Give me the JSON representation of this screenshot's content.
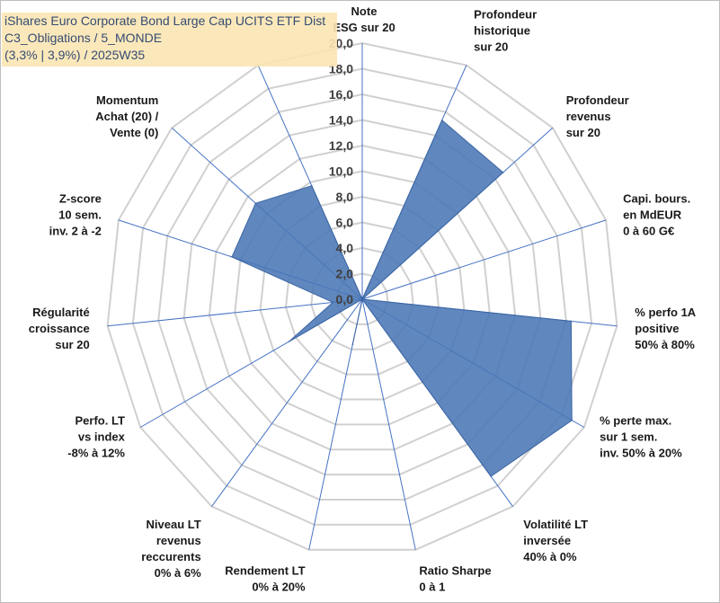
{
  "title": {
    "line1": "iShares Euro Corporate Bond Large Cap UCITS ETF Dist",
    "line2": "C3_Obligations / 5_MONDE",
    "line3": "(3,3% | 3,9%) / 2025W35"
  },
  "colors": {
    "fill": "#4a76b5",
    "stroke": "#3b65a3",
    "grid": "#d0d0d0",
    "spoke": "#4472c4",
    "title_bg": "#fbe6b3",
    "title_text": "#1f3864"
  },
  "chart_data": {
    "type": "radar",
    "rmin": 0,
    "rmax": 20,
    "rings": [
      0,
      2,
      4,
      6,
      8,
      10,
      12,
      14,
      16,
      18,
      20
    ],
    "tick_labels": [
      "0,0",
      "2,0",
      "4,0",
      "6,0",
      "8,0",
      "10,0",
      "12,0",
      "14,0",
      "16,0",
      "18,0",
      "20,0"
    ],
    "axes": [
      {
        "label": [
          "Note",
          "ESG sur 20"
        ],
        "value": 0
      },
      {
        "label": [
          "Profondeur",
          "historique",
          "sur 20"
        ],
        "value": 15.3
      },
      {
        "label": [
          "Profondeur",
          "revenus",
          "sur 20"
        ],
        "value": 14.8
      },
      {
        "label": [
          "Capi. bours.",
          "en MdEUR",
          "0 à 60 G€"
        ],
        "value": 0
      },
      {
        "label": [
          "% perfo 1A",
          "positive",
          "50% à 80%"
        ],
        "value": 16.4
      },
      {
        "label": [
          "% perte max.",
          "sur 1 sem.",
          "inv. 50% à 20%"
        ],
        "value": 18.9
      },
      {
        "label": [
          "Volatilité LT",
          "inversée",
          "40% à 0%"
        ],
        "value": 17.1
      },
      {
        "label": [
          "Ratio Sharpe",
          "0 à 1"
        ],
        "value": 0
      },
      {
        "label": [
          "Rendement LT",
          "0% à 20%"
        ],
        "value": 3.6
      },
      {
        "label": [
          "Niveau LT",
          "revenus",
          "reccurents",
          "0% à 6%"
        ],
        "value": 0
      },
      {
        "label": [
          "Perfo. LT",
          "vs index",
          "-8% à 12%"
        ],
        "value": 6.6
      },
      {
        "label": [
          "Régularité",
          "croissance",
          "sur 20"
        ],
        "value": 2.3
      },
      {
        "label": [
          "Z-score",
          "10 sem.",
          "inv. 2 à -2"
        ],
        "value": 10.7
      },
      {
        "label": [
          "Momentum",
          "Achat (20) /",
          "Vente (0)"
        ],
        "value": 11.2
      },
      {
        "label": [],
        "value": 9.7
      }
    ]
  }
}
